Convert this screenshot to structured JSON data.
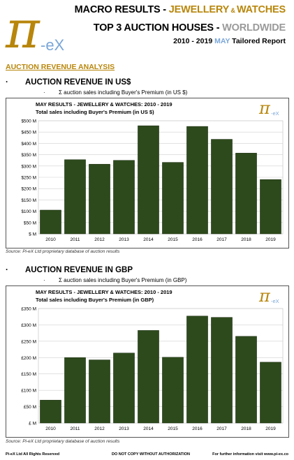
{
  "header": {
    "line1_prefix": "MACRO RESULTS - ",
    "line1_highlight": "JEWELLERY",
    "line1_amp": " & ",
    "line1_highlight2": "WATCHES",
    "line2_prefix": "TOP 3 AUCTION HOUSES - ",
    "line2_highlight": "WORLDWIDE",
    "line3_prefix": "2010 - 2019 ",
    "line3_highlight": "MAY",
    "line3_suffix": " Tailored Report"
  },
  "logo": {
    "symbol": "π",
    "text": "-eX"
  },
  "colors": {
    "gold": "#b8860b",
    "bar": "#2d4a1c",
    "grey": "#9a9a9a",
    "blue": "#7aa6d8"
  },
  "section_title": "AUCTION REVENUE ANALYSIS",
  "bullet_char": "·",
  "usd_section": {
    "heading": "AUCTION REVENUE IN US$",
    "sub": "Σ auction sales including Buyer's Premium (in US $)",
    "source": "Source:  Pi-eX Ltd proprietary database of auction results"
  },
  "gbp_section": {
    "heading": "AUCTION REVENUE IN GBP",
    "sub": "Σ auction sales including Buyer's Premium (in GBP)",
    "source": "Source:  Pi-eX Ltd proprietary database of auction results"
  },
  "chart_data": [
    {
      "type": "bar",
      "title": "MAY RESULTS - JEWELLERY & WATCHES: 2010 - 2019",
      "subtitle": "Total sales including Buyer's Premium (in US $)",
      "categories": [
        "2010",
        "2011",
        "2012",
        "2013",
        "2014",
        "2015",
        "2016",
        "2017",
        "2018",
        "2019"
      ],
      "values": [
        105,
        328,
        308,
        325,
        478,
        316,
        475,
        418,
        357,
        240
      ],
      "ylim": [
        0,
        500
      ],
      "ytick_values": [
        0,
        50,
        100,
        150,
        200,
        250,
        300,
        350,
        400,
        450,
        500
      ],
      "ytick_labels": [
        "$ M",
        "$50 M",
        "$100 M",
        "$150 M",
        "$200 M",
        "$250 M",
        "$300 M",
        "$350 M",
        "$400 M",
        "$450 M",
        "$500 M"
      ],
      "grid": true,
      "logo": "π-eX"
    },
    {
      "type": "bar",
      "title": "MAY RESULTS - JEWELLERY & WATCHES: 2010 - 2019",
      "subtitle": "Total sales including Buyer's Premium (in GBP)",
      "categories": [
        "2010",
        "2011",
        "2012",
        "2013",
        "2014",
        "2015",
        "2016",
        "2017",
        "2018",
        "2019"
      ],
      "values": [
        70,
        200,
        193,
        214,
        283,
        201,
        327,
        323,
        265,
        186
      ],
      "ylim": [
        0,
        350
      ],
      "ytick_values": [
        0,
        50,
        100,
        150,
        200,
        250,
        300,
        350
      ],
      "ytick_labels": [
        "£ M",
        "£50 M",
        "£100 M",
        "£150 M",
        "£200 M",
        "£250 M",
        "£300 M",
        "£350 M"
      ],
      "grid": true,
      "logo": "π-eX"
    }
  ],
  "footer": {
    "left": "Pi-eX Ltd All Rights Reserved",
    "center": "DO NOT COPY WITHOUT AUTHORIZATION",
    "right": "For further information visit www.pi-ex.co"
  }
}
